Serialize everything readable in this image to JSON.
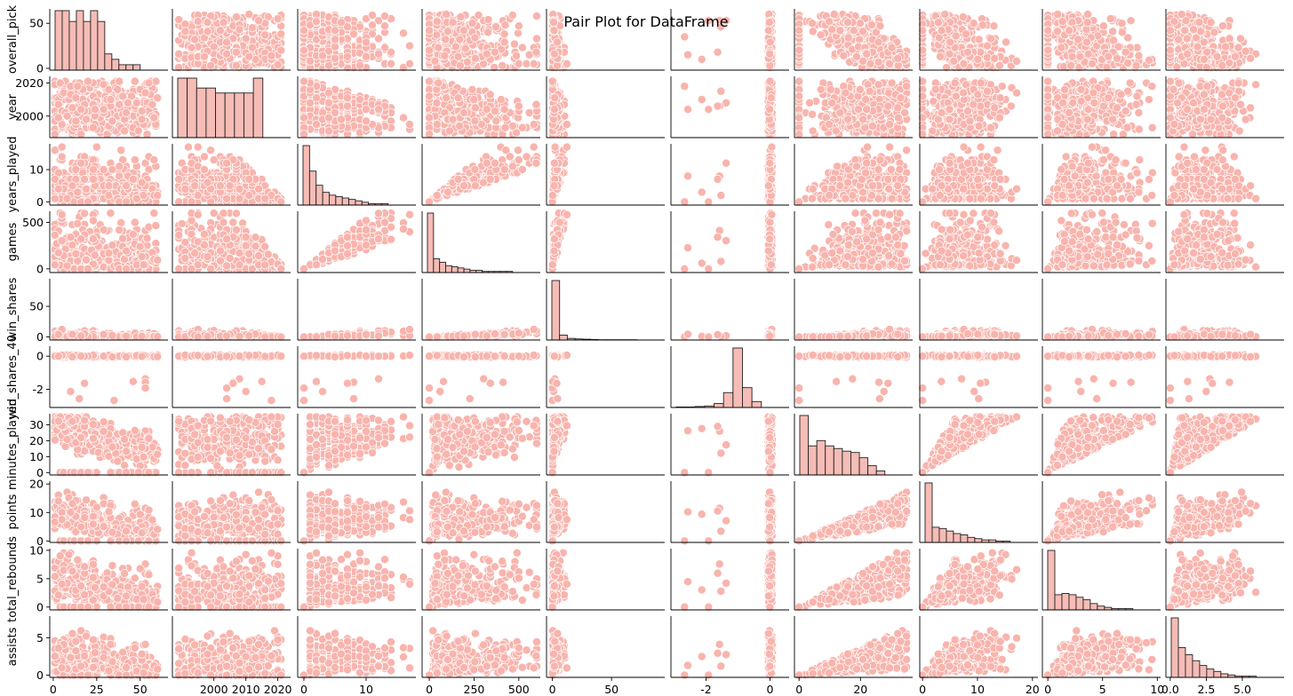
{
  "chart_data": {
    "type": "scatter",
    "title": "Pair Plot for DataFrame",
    "variables": [
      "overall_pick",
      "year",
      "years_played",
      "games",
      "win_shares",
      "win_shares_40",
      "minutes_played",
      "points",
      "total_rebounds",
      "assists"
    ],
    "diagonal": "histogram",
    "point_color": "#f8b4ad",
    "bar_color": "#f6bcb6",
    "axes": [
      {
        "name": "overall_pick",
        "range": [
          -2,
          66
        ],
        "ticks": [
          0,
          50
        ],
        "x_ticks": [
          0,
          25,
          50
        ]
      },
      {
        "name": "year",
        "range": [
          1987,
          2024
        ],
        "ticks": [
          2000,
          2020
        ],
        "x_ticks": [
          2000,
          2010,
          2020
        ]
      },
      {
        "name": "years_played",
        "range": [
          -1,
          18
        ],
        "ticks": [
          0,
          10
        ],
        "x_ticks": [
          0,
          10
        ]
      },
      {
        "name": "games",
        "range": [
          -40,
          620
        ],
        "ticks": [
          0,
          500
        ],
        "x_ticks": [
          0,
          250,
          500
        ]
      },
      {
        "name": "win_shares",
        "range": [
          -5,
          95
        ],
        "ticks": [
          0,
          50
        ],
        "x_ticks": [
          0,
          50
        ]
      },
      {
        "name": "win_shares_40",
        "range": [
          -3.1,
          0.6
        ],
        "ticks": [
          -2,
          0
        ],
        "x_ticks": [
          -2,
          0
        ]
      },
      {
        "name": "minutes_played",
        "range": [
          -1.5,
          37
        ],
        "ticks": [
          0,
          10,
          20,
          30
        ],
        "x_ticks": [
          0,
          20
        ]
      },
      {
        "name": "points",
        "range": [
          -0.5,
          21
        ],
        "ticks": [
          0,
          10,
          20
        ],
        "x_ticks": [
          0,
          10,
          20
        ]
      },
      {
        "name": "total_rebounds",
        "range": [
          -0.5,
          10.3
        ],
        "ticks": [
          0,
          5,
          10
        ],
        "x_ticks": [
          0,
          5,
          10
        ]
      },
      {
        "name": "assists",
        "range": [
          -0.3,
          7.9
        ],
        "ticks": [
          0,
          5
        ],
        "x_ticks": [
          0.0,
          2.5,
          5.0
        ]
      }
    ],
    "histograms": [
      {
        "var": "overall_pick",
        "counts": [
          11,
          11,
          9,
          11,
          9,
          11,
          9,
          3,
          2,
          1,
          1,
          1
        ]
      },
      {
        "var": "year",
        "counts": [
          12,
          12,
          10,
          10,
          9,
          9,
          9,
          9,
          12
        ]
      },
      {
        "var": "years_played",
        "counts": [
          42,
          24,
          14,
          9,
          7,
          6,
          5,
          4,
          3,
          2,
          1,
          1,
          1
        ]
      },
      {
        "var": "games",
        "counts": [
          52,
          12,
          9,
          6,
          5,
          4,
          3,
          2,
          2,
          1,
          1,
          1,
          1,
          1
        ]
      },
      {
        "var": "win_shares",
        "counts": [
          220,
          18,
          6,
          4,
          3,
          2,
          1,
          1,
          1,
          1,
          1
        ]
      },
      {
        "var": "win_shares_40",
        "counts": [
          1,
          1,
          2,
          3,
          8,
          30,
          120,
          40,
          12
        ]
      },
      {
        "var": "minutes_played",
        "counts": [
          45,
          22,
          26,
          22,
          20,
          18,
          17,
          13,
          7,
          3
        ]
      },
      {
        "var": "points",
        "counts": [
          47,
          12,
          11,
          9,
          7,
          6,
          4,
          3,
          2,
          2,
          1,
          1
        ]
      },
      {
        "var": "total_rebounds",
        "counts": [
          47,
          12,
          13,
          12,
          10,
          8,
          5,
          3,
          2,
          1,
          1,
          1
        ]
      },
      {
        "var": "assists",
        "counts": [
          50,
          25,
          19,
          14,
          10,
          7,
          5,
          3,
          2,
          1,
          1,
          1
        ]
      }
    ]
  }
}
